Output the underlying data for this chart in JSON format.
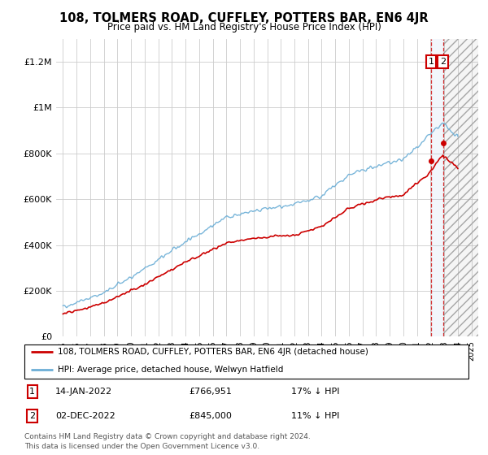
{
  "title": "108, TOLMERS ROAD, CUFFLEY, POTTERS BAR, EN6 4JR",
  "subtitle": "Price paid vs. HM Land Registry's House Price Index (HPI)",
  "ylabel_ticks": [
    "£0",
    "£200K",
    "£400K",
    "£600K",
    "£800K",
    "£1M",
    "£1.2M"
  ],
  "ytick_values": [
    0,
    200000,
    400000,
    600000,
    800000,
    1000000,
    1200000
  ],
  "ylim": [
    0,
    1300000
  ],
  "legend_line1": "108, TOLMERS ROAD, CUFFLEY, POTTERS BAR, EN6 4JR (detached house)",
  "legend_line2": "HPI: Average price, detached house, Welwyn Hatfield",
  "annotation1_date": "14-JAN-2022",
  "annotation1_price": "£766,951",
  "annotation1_hpi": "17% ↓ HPI",
  "annotation2_date": "02-DEC-2022",
  "annotation2_price": "£845,000",
  "annotation2_hpi": "11% ↓ HPI",
  "footnote": "Contains HM Land Registry data © Crown copyright and database right 2024.\nThis data is licensed under the Open Government Licence v3.0.",
  "hpi_color": "#6baed6",
  "price_color": "#cc0000",
  "marker1_x": 2022.04,
  "marker1_y": 766951,
  "marker2_x": 2022.92,
  "marker2_y": 845000,
  "vline1_x": 2022.04,
  "vline2_x": 2022.92,
  "shade_between_start": 2022.04,
  "shade_between_end": 2022.92,
  "future_shade_start": 2022.92,
  "future_shade_end": 2025.5,
  "xlim_left": 1994.5,
  "xlim_right": 2025.5
}
